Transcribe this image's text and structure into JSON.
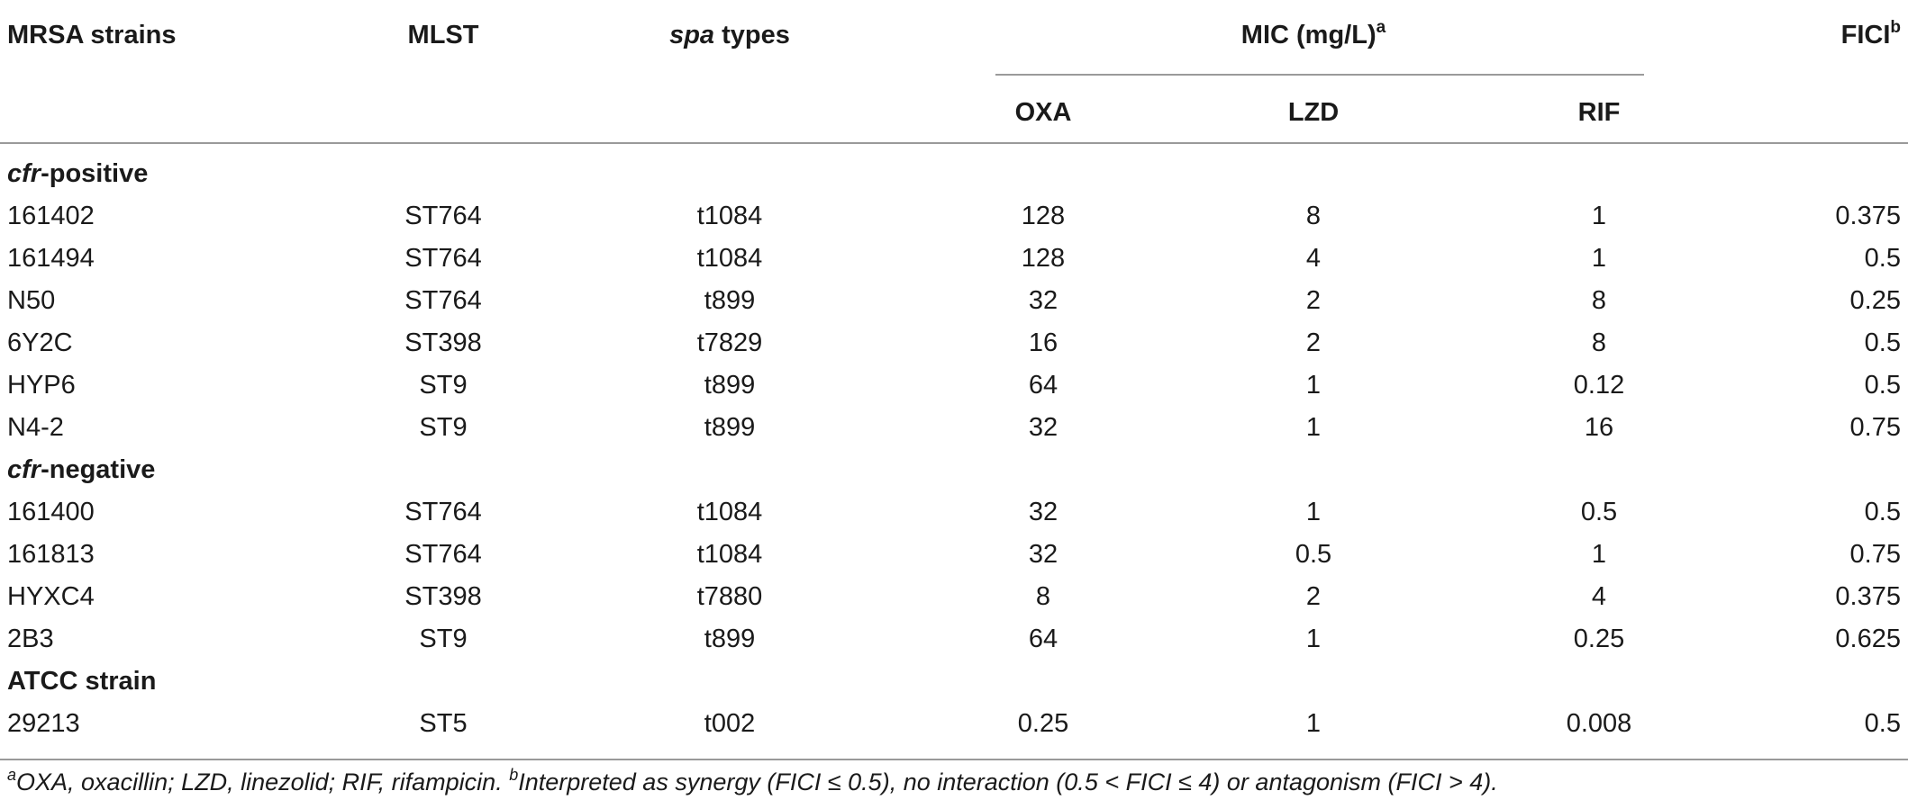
{
  "headers": {
    "strain": "MRSA strains",
    "mlst": "MLST",
    "spa_italic": "spa",
    "spa_rest": " types",
    "mic": "MIC (mg/L)",
    "mic_sup": "a",
    "fici": "FICI",
    "fici_sup": "b",
    "oxa": "OXA",
    "lzd": "LZD",
    "rif": "RIF"
  },
  "sections": [
    {
      "italic": "cfr",
      "rest": "-positive"
    },
    {
      "italic": "cfr",
      "rest": "-negative"
    },
    {
      "italic": "",
      "rest": "ATCC strain"
    }
  ],
  "rows": [
    {
      "strain": "161402",
      "mlst": "ST764",
      "spa": "t1084",
      "oxa": "128",
      "lzd": "8",
      "rif": "1",
      "fici": "0.375"
    },
    {
      "strain": "161494",
      "mlst": "ST764",
      "spa": "t1084",
      "oxa": "128",
      "lzd": "4",
      "rif": "1",
      "fici": "0.5"
    },
    {
      "strain": "N50",
      "mlst": "ST764",
      "spa": "t899",
      "oxa": "32",
      "lzd": "2",
      "rif": "8",
      "fici": "0.25"
    },
    {
      "strain": "6Y2C",
      "mlst": "ST398",
      "spa": "t7829",
      "oxa": "16",
      "lzd": "2",
      "rif": "8",
      "fici": "0.5"
    },
    {
      "strain": "HYP6",
      "mlst": "ST9",
      "spa": "t899",
      "oxa": "64",
      "lzd": "1",
      "rif": "0.12",
      "fici": "0.5"
    },
    {
      "strain": "N4-2",
      "mlst": "ST9",
      "spa": "t899",
      "oxa": "32",
      "lzd": "1",
      "rif": "16",
      "fici": "0.75"
    },
    {
      "strain": "161400",
      "mlst": "ST764",
      "spa": "t1084",
      "oxa": "32",
      "lzd": "1",
      "rif": "0.5",
      "fici": "0.5"
    },
    {
      "strain": "161813",
      "mlst": "ST764",
      "spa": "t1084",
      "oxa": "32",
      "lzd": "0.5",
      "rif": "1",
      "fici": "0.75"
    },
    {
      "strain": "HYXC4",
      "mlst": "ST398",
      "spa": "t7880",
      "oxa": "8",
      "lzd": "2",
      "rif": "4",
      "fici": "0.375"
    },
    {
      "strain": "2B3",
      "mlst": "ST9",
      "spa": "t899",
      "oxa": "64",
      "lzd": "1",
      "rif": "0.25",
      "fici": "0.625"
    },
    {
      "strain": "29213",
      "mlst": "ST5",
      "spa": "t002",
      "oxa": "0.25",
      "lzd": "1",
      "rif": "0.008",
      "fici": "0.5"
    }
  ],
  "footnote": {
    "sup_a": "a",
    "text_a": "OXA, oxacillin; LZD, linezolid; RIF, rifampicin. ",
    "sup_b": "b",
    "text_b": "Interpreted as synergy (FICI ≤ 0.5), no interaction (0.5 < FICI ≤ 4) or antagonism (FICI > 4)."
  }
}
